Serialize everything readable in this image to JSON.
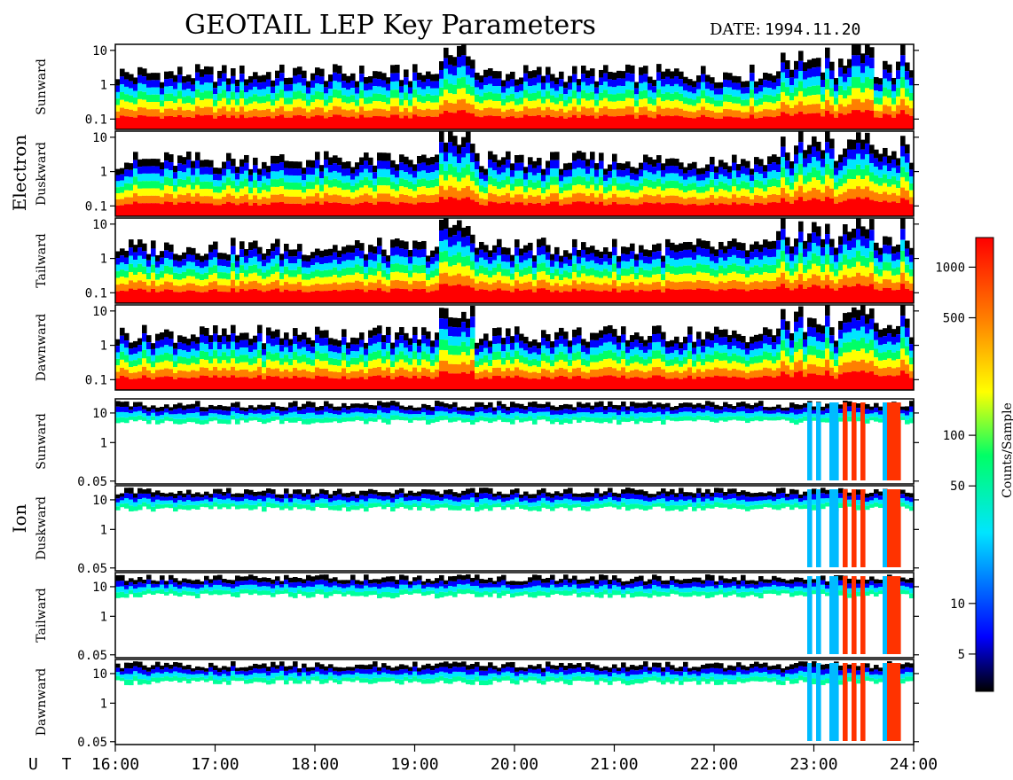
{
  "title": "GEOTAIL LEP Key Parameters",
  "date_label": "DATE:",
  "date_value": "1994.11.20",
  "time_axis_label": "U T",
  "colorbar": {
    "label": "Counts/Sample",
    "scale": "log",
    "range": [
      3,
      1500
    ],
    "ticks": [
      {
        "value": 1000,
        "label": "1000"
      },
      {
        "value": 500,
        "label": "500"
      },
      {
        "value": 100,
        "label": "100"
      },
      {
        "value": 50,
        "label": "50"
      },
      {
        "value": 10,
        "label": "10"
      },
      {
        "value": 5,
        "label": "5"
      }
    ],
    "colors": [
      "#000000",
      "#0000ff",
      "#00e5ff",
      "#00ff66",
      "#ffff00",
      "#ff8000",
      "#ff0000"
    ]
  },
  "chart_data": {
    "type": "heatmap",
    "title": "GEOTAIL LEP Key Parameters",
    "date": "1994.11.20",
    "x_axis": {
      "label": "U T",
      "range": [
        "16:00",
        "24:00"
      ],
      "ticks": [
        "16:00",
        "17:00",
        "18:00",
        "19:00",
        "20:00",
        "21:00",
        "22:00",
        "23:00",
        "24:00"
      ]
    },
    "groups": [
      {
        "species": "Electron",
        "y_axis": {
          "scale": "log",
          "range": [
            0.05,
            15
          ],
          "ticks": [
            "10",
            "1",
            "0.1"
          ]
        },
        "panels": [
          "Sunward",
          "Duskward",
          "Tailward",
          "Dawnward"
        ]
      },
      {
        "species": "Ion",
        "y_axis": {
          "scale": "log",
          "range": [
            0.04,
            30
          ],
          "ticks": [
            "10",
            "1",
            "0.05"
          ]
        },
        "panels": [
          "Sunward",
          "Duskward",
          "Tailward",
          "Dawnward"
        ]
      }
    ],
    "colorbar": {
      "label": "Counts/Sample",
      "ticks": [
        1000,
        500,
        100,
        50,
        10,
        5
      ]
    },
    "grid": false
  }
}
